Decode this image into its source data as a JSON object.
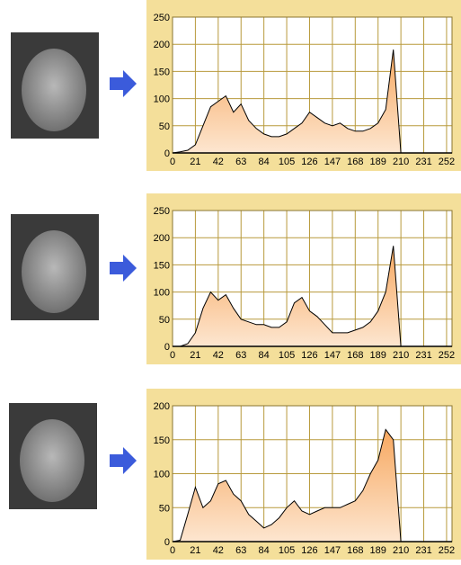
{
  "chart_data": [
    {
      "type": "area",
      "color": "#f9b678",
      "line_color": "#000000",
      "grid": true,
      "x": [
        0,
        7,
        14,
        21,
        28,
        35,
        42,
        49,
        56,
        63,
        70,
        77,
        84,
        91,
        98,
        105,
        112,
        119,
        126,
        133,
        140,
        147,
        154,
        161,
        168,
        175,
        182,
        189,
        196,
        203,
        210,
        217,
        224,
        231,
        238,
        245,
        252
      ],
      "values": [
        0,
        2,
        5,
        15,
        50,
        85,
        95,
        105,
        75,
        90,
        60,
        45,
        35,
        30,
        30,
        35,
        45,
        55,
        75,
        65,
        55,
        50,
        55,
        45,
        40,
        40,
        45,
        55,
        80,
        190,
        0,
        0,
        0,
        0,
        0,
        0,
        0
      ],
      "xlim": [
        0,
        257
      ],
      "ylim": [
        0,
        250
      ],
      "xticks": [
        0,
        21,
        42,
        63,
        84,
        105,
        126,
        147,
        168,
        189,
        210,
        231,
        252
      ],
      "yticks": [
        0,
        50,
        100,
        150,
        200,
        250
      ]
    },
    {
      "type": "area",
      "color": "#f9b678",
      "line_color": "#000000",
      "grid": true,
      "x": [
        0,
        7,
        14,
        21,
        28,
        35,
        42,
        49,
        56,
        63,
        70,
        77,
        84,
        91,
        98,
        105,
        112,
        119,
        126,
        133,
        140,
        147,
        154,
        161,
        168,
        175,
        182,
        189,
        196,
        203,
        210,
        217,
        224,
        231,
        238,
        245,
        252
      ],
      "values": [
        0,
        0,
        5,
        25,
        70,
        100,
        85,
        95,
        70,
        50,
        45,
        40,
        40,
        35,
        35,
        45,
        80,
        90,
        65,
        55,
        40,
        25,
        25,
        25,
        30,
        35,
        45,
        65,
        100,
        185,
        0,
        0,
        0,
        0,
        0,
        0,
        0
      ],
      "xlim": [
        0,
        257
      ],
      "ylim": [
        0,
        250
      ],
      "xticks": [
        0,
        21,
        42,
        63,
        84,
        105,
        126,
        147,
        168,
        189,
        210,
        231,
        252
      ],
      "yticks": [
        0,
        50,
        100,
        150,
        200,
        250
      ]
    },
    {
      "type": "area",
      "color": "#f9b678",
      "line_color": "#000000",
      "grid": true,
      "x": [
        0,
        7,
        14,
        21,
        28,
        35,
        42,
        49,
        56,
        63,
        70,
        77,
        84,
        91,
        98,
        105,
        112,
        119,
        126,
        133,
        140,
        147,
        154,
        161,
        168,
        175,
        182,
        189,
        196,
        203,
        210,
        217,
        224,
        231,
        238,
        245,
        252
      ],
      "values": [
        0,
        2,
        40,
        80,
        50,
        60,
        85,
        90,
        70,
        60,
        40,
        30,
        20,
        25,
        35,
        50,
        60,
        45,
        40,
        45,
        50,
        50,
        50,
        55,
        60,
        75,
        100,
        120,
        165,
        150,
        0,
        0,
        0,
        0,
        0,
        0,
        0
      ],
      "xlim": [
        0,
        257
      ],
      "ylim": [
        0,
        200
      ],
      "xticks": [
        0,
        21,
        42,
        63,
        84,
        105,
        126,
        147,
        168,
        189,
        210,
        231,
        252
      ],
      "yticks": [
        0,
        50,
        100,
        150,
        200
      ]
    }
  ]
}
